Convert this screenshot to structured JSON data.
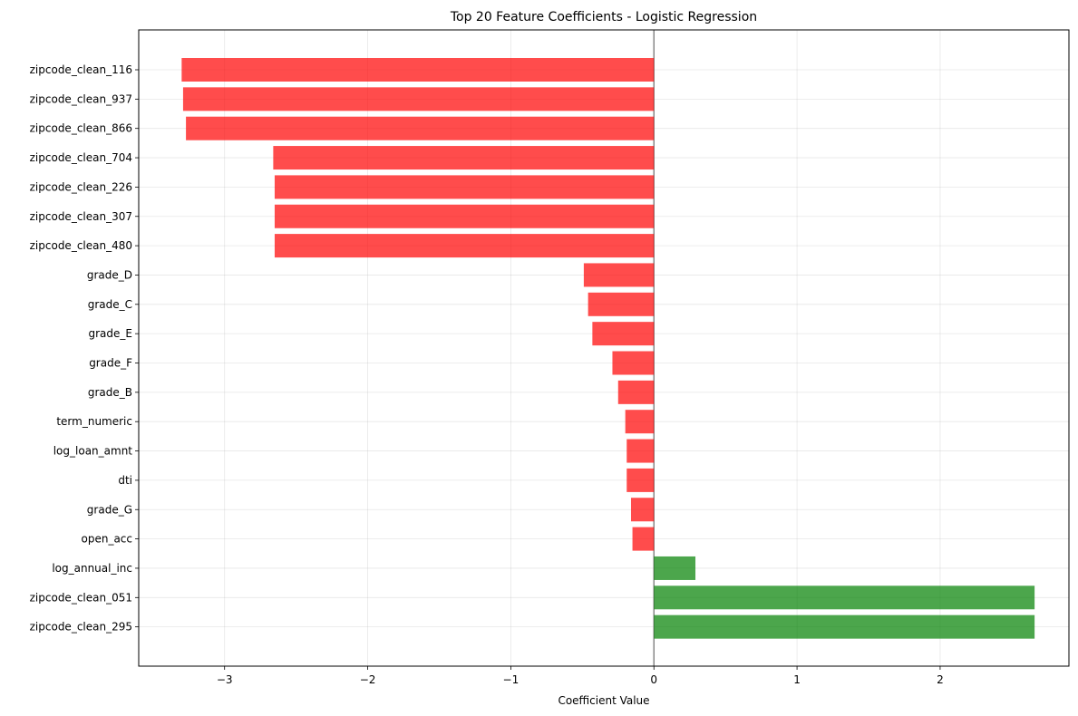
{
  "chart_data": {
    "type": "bar",
    "orientation": "horizontal",
    "title": "Top 20 Feature Coefficients - Logistic Regression",
    "xlabel": "Coefficient Value",
    "ylabel": "",
    "xlim": [
      -3.6,
      2.9
    ],
    "xticks": [
      -3,
      -2,
      -1,
      0,
      1,
      2
    ],
    "xtick_labels": [
      "−3",
      "−2",
      "−1",
      "0",
      "1",
      "2"
    ],
    "grid": true,
    "reference_line_x": 0,
    "colors": {
      "negative": "#ff0000",
      "positive": "#008000",
      "bar_opacity": 0.7,
      "zero_line": "#808080"
    },
    "categories": [
      "zipcode_clean_116",
      "zipcode_clean_937",
      "zipcode_clean_866",
      "zipcode_clean_704",
      "zipcode_clean_226",
      "zipcode_clean_307",
      "zipcode_clean_480",
      "grade_D",
      "grade_C",
      "grade_E",
      "grade_F",
      "grade_B",
      "term_numeric",
      "log_loan_amnt",
      "dti",
      "grade_G",
      "open_acc",
      "log_annual_inc",
      "zipcode_clean_051",
      "zipcode_clean_295"
    ],
    "values": [
      -3.3,
      -3.29,
      -3.27,
      -2.66,
      -2.65,
      -2.65,
      -2.65,
      -0.49,
      -0.46,
      -0.43,
      -0.29,
      -0.25,
      -0.2,
      -0.19,
      -0.19,
      -0.16,
      -0.15,
      0.29,
      2.66,
      2.66
    ]
  }
}
